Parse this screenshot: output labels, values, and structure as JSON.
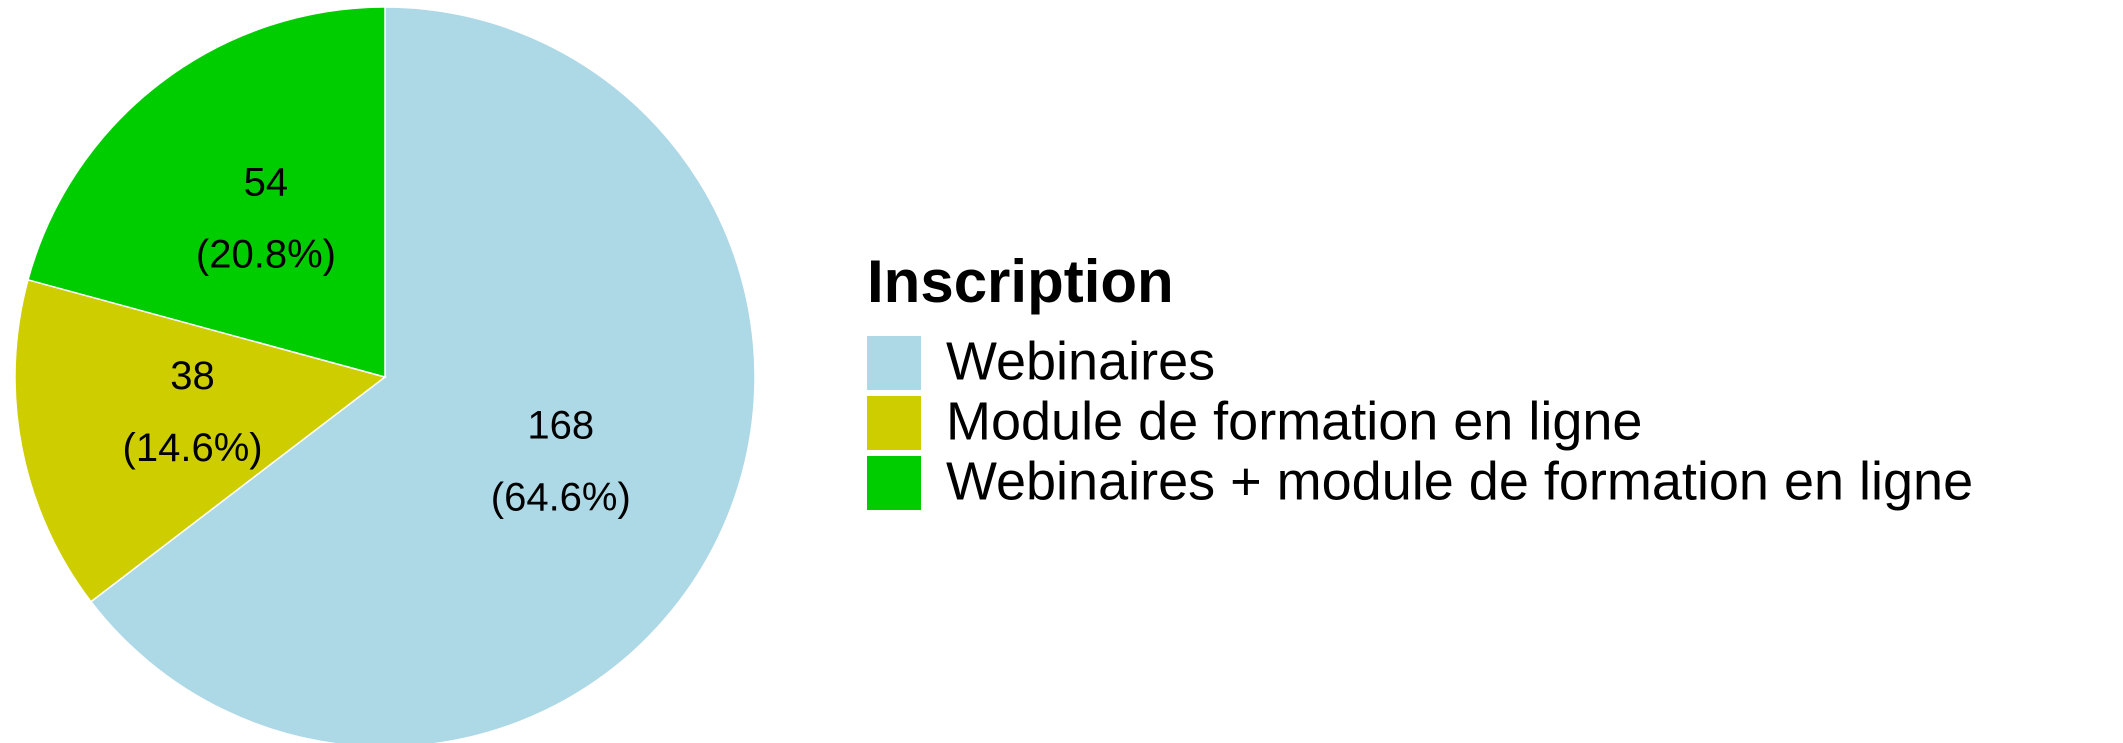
{
  "chart_data": {
    "type": "pie",
    "legend_title": "Inscription",
    "categories": [
      "Webinaires",
      "Module de formation en ligne",
      "Webinaires + module de formation en ligne"
    ],
    "values": [
      168,
      38,
      54
    ],
    "percent_labels": [
      "(64.6%)",
      "(14.6%)",
      "(20.8%)"
    ],
    "colors": [
      "#add8e6",
      "#cdcd00",
      "#00cd00"
    ],
    "legend": "right"
  }
}
